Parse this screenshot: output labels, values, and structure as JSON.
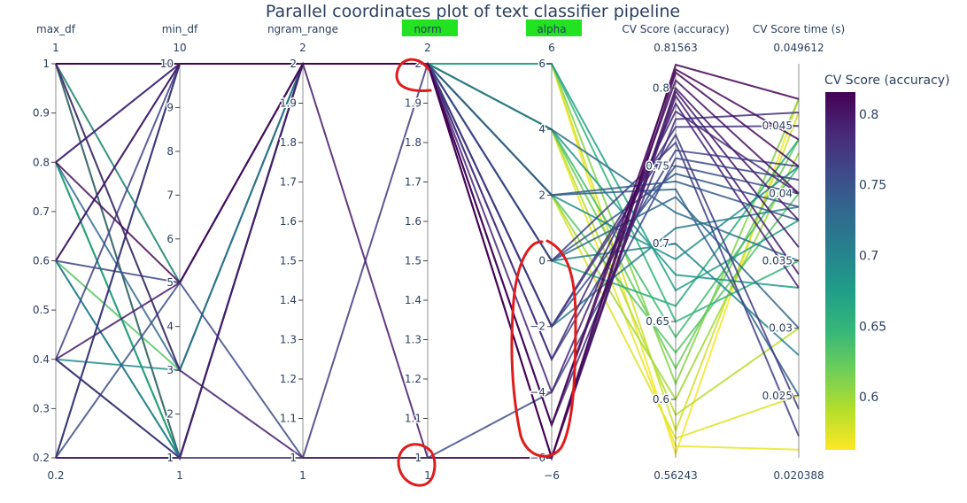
{
  "chart_data": {
    "type": "parallel_coordinates",
    "title": "Parallel coordinates plot of text classifier pipeline",
    "colorscale": "viridis_reversed",
    "colorscale_stops": [
      "#fde725",
      "#b5de2b",
      "#6ece58",
      "#35b779",
      "#1f9e89",
      "#26828e",
      "#31688e",
      "#3e4989",
      "#482878",
      "#440154"
    ],
    "highlight_color": "#22e222",
    "annotation_color": "#e01b1b",
    "color_axis": {
      "title": "CV Score (accuracy)",
      "range": [
        0.56243,
        0.81563
      ],
      "ticks": [
        "0.6",
        "0.65",
        "0.7",
        "0.75",
        "0.8"
      ]
    },
    "dimensions": [
      {
        "label": "max_df",
        "range": [
          0.2,
          1
        ],
        "top_label": "1",
        "bottom_label": "0.2",
        "ticks": [
          "0.2",
          "0.3",
          "0.4",
          "0.5",
          "0.6",
          "0.7",
          "0.8",
          "0.9",
          "1"
        ],
        "highlighted": false
      },
      {
        "label": "min_df",
        "range": [
          1,
          10
        ],
        "top_label": "10",
        "bottom_label": "1",
        "ticks": [
          "1",
          "2",
          "3",
          "4",
          "5",
          "6",
          "7",
          "8",
          "9",
          "10"
        ],
        "highlighted": false
      },
      {
        "label": "ngram_range",
        "range": [
          1,
          2
        ],
        "top_label": "2",
        "bottom_label": "1",
        "ticks": [
          "1",
          "1.1",
          "1.2",
          "1.3",
          "1.4",
          "1.5",
          "1.6",
          "1.7",
          "1.8",
          "1.9",
          "2"
        ],
        "highlighted": false
      },
      {
        "label": "norm",
        "range": [
          1,
          2
        ],
        "top_label": "2",
        "bottom_label": "1",
        "ticks": [
          "1",
          "1.1",
          "1.2",
          "1.3",
          "1.4",
          "1.5",
          "1.6",
          "1.7",
          "1.8",
          "1.9",
          "2"
        ],
        "highlighted": true
      },
      {
        "label": "alpha",
        "range": [
          -6,
          6
        ],
        "top_label": "6",
        "bottom_label": "−6",
        "ticks": [
          "−6",
          "−4",
          "−2",
          "0",
          "2",
          "4",
          "6"
        ],
        "highlighted": true
      },
      {
        "label": "CV Score (accuracy)",
        "range": [
          0.56243,
          0.81563
        ],
        "top_label": "0.81563",
        "bottom_label": "0.56243",
        "ticks": [
          "0.6",
          "0.65",
          "0.7",
          "0.75",
          "0.8"
        ],
        "highlighted": false
      },
      {
        "label": "CV Score time (s)",
        "range": [
          0.020388,
          0.049612
        ],
        "top_label": "0.049612",
        "bottom_label": "0.020388",
        "ticks": [
          "0.025",
          "0.03",
          "0.035",
          "0.04",
          "0.045"
        ],
        "highlighted": false
      }
    ],
    "rows": [
      [
        1,
        10,
        2,
        2,
        -6,
        0.815,
        0.047
      ],
      [
        1,
        10,
        2,
        2,
        -5,
        0.812,
        0.044
      ],
      [
        0.8,
        5,
        2,
        2,
        -6,
        0.81,
        0.042
      ],
      [
        0.6,
        10,
        2,
        2,
        -5,
        0.805,
        0.04
      ],
      [
        0.4,
        5,
        2,
        1,
        -6,
        0.8,
        0.038
      ],
      [
        0.2,
        1,
        2,
        2,
        -6,
        0.798,
        0.036
      ],
      [
        1,
        3,
        1,
        1,
        -6,
        0.795,
        0.034
      ],
      [
        0.8,
        10,
        2,
        2,
        -4,
        0.79,
        0.033
      ],
      [
        0.2,
        10,
        2,
        2,
        -3,
        0.785,
        0.04
      ],
      [
        0.4,
        1,
        2,
        2,
        -5,
        0.78,
        0.046
      ],
      [
        0.2,
        1,
        1,
        2,
        -2,
        0.775,
        0.045
      ],
      [
        1,
        10,
        2,
        2,
        -2,
        0.77,
        0.024
      ],
      [
        0.4,
        10,
        2,
        2,
        0,
        0.765,
        0.022
      ],
      [
        0.6,
        5,
        2,
        2,
        -3,
        0.76,
        0.042
      ],
      [
        0.2,
        5,
        1,
        1,
        -4,
        0.755,
        0.041
      ],
      [
        0.8,
        10,
        2,
        2,
        -2,
        0.75,
        0.04
      ],
      [
        1,
        1,
        2,
        2,
        0,
        0.745,
        0.039
      ],
      [
        0.6,
        10,
        2,
        2,
        2,
        0.74,
        0.038
      ],
      [
        0.4,
        1,
        2,
        2,
        2,
        0.735,
        0.025
      ],
      [
        0.8,
        3,
        2,
        2,
        0,
        0.73,
        0.03
      ],
      [
        0.2,
        10,
        2,
        2,
        4,
        0.72,
        0.035
      ],
      [
        0.6,
        1,
        2,
        2,
        -2,
        0.71,
        0.039
      ],
      [
        1,
        5,
        2,
        2,
        0,
        0.7,
        0.028
      ],
      [
        0.4,
        3,
        2,
        2,
        2,
        0.69,
        0.042
      ],
      [
        0.8,
        1,
        2,
        2,
        4,
        0.68,
        0.033
      ],
      [
        0.6,
        1,
        2,
        2,
        6,
        0.67,
        0.038
      ],
      [
        0.2,
        10,
        2,
        2,
        0,
        0.66,
        0.044
      ],
      [
        0.8,
        1,
        2,
        2,
        6,
        0.65,
        0.035
      ],
      [
        1,
        3,
        2,
        2,
        4,
        0.64,
        0.042
      ],
      [
        0.6,
        3,
        2,
        2,
        2,
        0.63,
        0.04
      ],
      [
        1,
        1,
        2,
        2,
        4,
        0.62,
        0.044
      ],
      [
        0.4,
        1,
        2,
        2,
        6,
        0.61,
        0.047
      ],
      [
        1,
        5,
        2,
        2,
        2,
        0.6,
        0.043
      ],
      [
        0.8,
        1,
        2,
        2,
        4,
        0.59,
        0.03
      ],
      [
        1,
        1,
        2,
        2,
        6,
        0.58,
        0.046
      ],
      [
        0.8,
        1,
        2,
        2,
        2,
        0.575,
        0.025
      ],
      [
        1,
        1,
        2,
        2,
        4,
        0.57,
        0.021
      ],
      [
        1,
        1,
        2,
        2,
        6,
        0.565,
        0.047
      ]
    ]
  }
}
